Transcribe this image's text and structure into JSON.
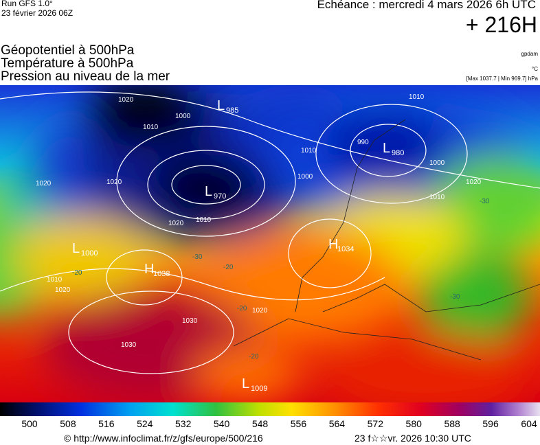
{
  "header": {
    "run": "Run GFS 1.0°",
    "run_date": "23 février 2026 06Z",
    "valid": "Echéance : mercredi 4 mars 2026 6h UTC",
    "lead": "+ 216H",
    "fields": [
      "Géopotentiel à 500hPa",
      "Température à 500hPa",
      "Pression au niveau de la mer"
    ],
    "units": [
      "gpdam",
      "°C",
      "[Max 1037.7 | Min 969.7] hPa"
    ]
  },
  "map": {
    "centers": [
      {
        "symbol": "L",
        "value": "985"
      },
      {
        "symbol": "L",
        "value": "970"
      },
      {
        "symbol": "L",
        "value": "980"
      },
      {
        "symbol": "L",
        "value": "1000"
      },
      {
        "symbol": "H",
        "value": "1038"
      },
      {
        "symbol": "H",
        "value": "1034"
      },
      {
        "symbol": "L",
        "value": "1009"
      }
    ],
    "isobar_labels": [
      "1020",
      "1010",
      "1000",
      "1020",
      "1020",
      "1020",
      "1010",
      "1010",
      "1000",
      "1010",
      "1000",
      "1010",
      "1020",
      "1030",
      "1030",
      "1020",
      "1010",
      "1020",
      "990"
    ],
    "temperature_labels": [
      "-30",
      "-30",
      "-20",
      "-20",
      "-20",
      "-20",
      "-30"
    ]
  },
  "scale": {
    "labels": [
      500,
      508,
      516,
      524,
      532,
      540,
      548,
      556,
      564,
      572,
      580,
      588,
      596,
      604
    ]
  },
  "footer": {
    "source": "© http://www.infoclimat.fr/z/gfs/europe/500/216",
    "generated": "23 f☆☆vr. 2026 10:30 UTC"
  }
}
